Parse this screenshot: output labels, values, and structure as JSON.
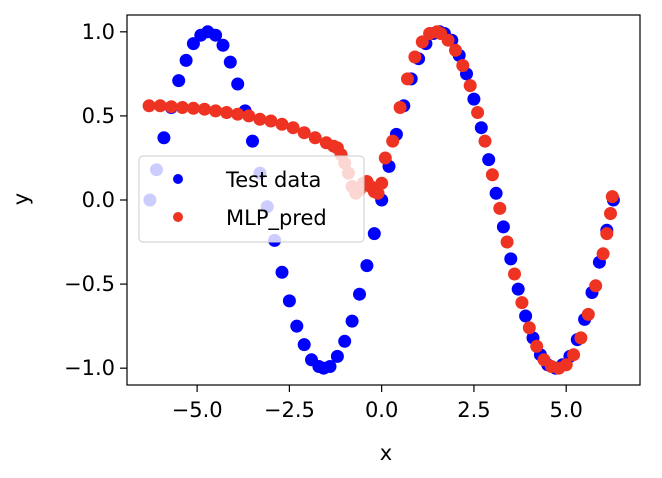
{
  "chart_data": {
    "type": "scatter",
    "xlabel": "x",
    "ylabel": "y",
    "xlim": [
      -6.9,
      7.0
    ],
    "ylim": [
      -1.1,
      1.1
    ],
    "xticks": [
      -5.0,
      -2.5,
      0.0,
      2.5,
      5.0
    ],
    "xtick_labels": [
      "−5.0",
      "−2.5",
      "0.0",
      "2.5",
      "5.0"
    ],
    "yticks": [
      -1.0,
      -0.5,
      0.0,
      0.5,
      1.0
    ],
    "ytick_labels": [
      "−1.0",
      "−0.5",
      "0.0",
      "0.5",
      "1.0"
    ],
    "grid": false,
    "legend_position": "center-left",
    "series": [
      {
        "name": "Test data",
        "color": "#0000ff",
        "x": [
          -6.28,
          -6.1,
          -5.9,
          -5.7,
          -5.5,
          -5.3,
          -5.1,
          -4.9,
          -4.71,
          -4.5,
          -4.3,
          -4.1,
          -3.9,
          -3.7,
          -3.5,
          -3.3,
          -3.1,
          -2.9,
          -2.7,
          -2.5,
          -2.3,
          -2.1,
          -1.9,
          -1.7,
          -1.57,
          -1.4,
          -1.2,
          -1.0,
          -0.8,
          -0.6,
          -0.4,
          -0.2,
          0.0,
          0.2,
          0.4,
          0.6,
          0.8,
          1.0,
          1.2,
          1.4,
          1.57,
          1.7,
          1.9,
          2.1,
          2.3,
          2.5,
          2.7,
          2.9,
          3.1,
          3.3,
          3.5,
          3.7,
          3.9,
          4.1,
          4.3,
          4.5,
          4.71,
          4.9,
          5.1,
          5.3,
          5.5,
          5.7,
          5.9,
          6.1,
          6.28
        ],
        "y": [
          0.0,
          0.18,
          0.37,
          0.55,
          0.71,
          0.83,
          0.93,
          0.98,
          1.0,
          0.98,
          0.92,
          0.82,
          0.69,
          0.53,
          0.35,
          0.16,
          -0.04,
          -0.24,
          -0.43,
          -0.6,
          -0.75,
          -0.86,
          -0.95,
          -0.99,
          -1.0,
          -0.99,
          -0.93,
          -0.84,
          -0.72,
          -0.56,
          -0.39,
          -0.2,
          0.0,
          0.2,
          0.39,
          0.56,
          0.72,
          0.84,
          0.93,
          0.99,
          1.0,
          0.99,
          0.95,
          0.86,
          0.75,
          0.6,
          0.43,
          0.24,
          0.04,
          -0.16,
          -0.35,
          -0.53,
          -0.69,
          -0.82,
          -0.92,
          -0.98,
          -1.0,
          -0.98,
          -0.93,
          -0.83,
          -0.71,
          -0.55,
          -0.37,
          -0.18,
          0.0
        ]
      },
      {
        "name": "MLP_pred",
        "color": "#ee3322",
        "x": [
          -6.3,
          -6.0,
          -5.7,
          -5.4,
          -5.1,
          -4.8,
          -4.5,
          -4.2,
          -3.9,
          -3.6,
          -3.3,
          -3.0,
          -2.7,
          -2.4,
          -2.1,
          -1.8,
          -1.5,
          -1.3,
          -1.2,
          -1.1,
          -1.0,
          -0.9,
          -0.8,
          -0.7,
          -0.6,
          -0.5,
          -0.4,
          -0.3,
          -0.2,
          -0.1,
          0.0,
          0.1,
          0.3,
          0.5,
          0.7,
          0.9,
          1.1,
          1.3,
          1.5,
          1.6,
          1.8,
          2.0,
          2.2,
          2.4,
          2.6,
          2.8,
          3.0,
          3.2,
          3.4,
          3.6,
          3.8,
          4.0,
          4.2,
          4.4,
          4.6,
          4.8,
          5.0,
          5.2,
          5.4,
          5.6,
          5.8,
          6.0,
          6.1,
          6.2,
          6.25
        ],
        "y": [
          0.56,
          0.56,
          0.555,
          0.55,
          0.545,
          0.54,
          0.53,
          0.52,
          0.51,
          0.5,
          0.48,
          0.47,
          0.45,
          0.43,
          0.4,
          0.37,
          0.34,
          0.32,
          0.31,
          0.27,
          0.22,
          0.16,
          0.08,
          0.04,
          0.06,
          0.1,
          0.11,
          0.08,
          0.05,
          0.04,
          0.1,
          0.25,
          0.35,
          0.55,
          0.72,
          0.85,
          0.94,
          0.99,
          1.0,
          0.99,
          0.95,
          0.89,
          0.8,
          0.68,
          0.52,
          0.35,
          0.15,
          -0.05,
          -0.25,
          -0.44,
          -0.61,
          -0.76,
          -0.87,
          -0.95,
          -0.99,
          -1.0,
          -0.98,
          -0.92,
          -0.82,
          -0.68,
          -0.51,
          -0.32,
          -0.2,
          -0.08,
          0.02
        ]
      }
    ]
  }
}
